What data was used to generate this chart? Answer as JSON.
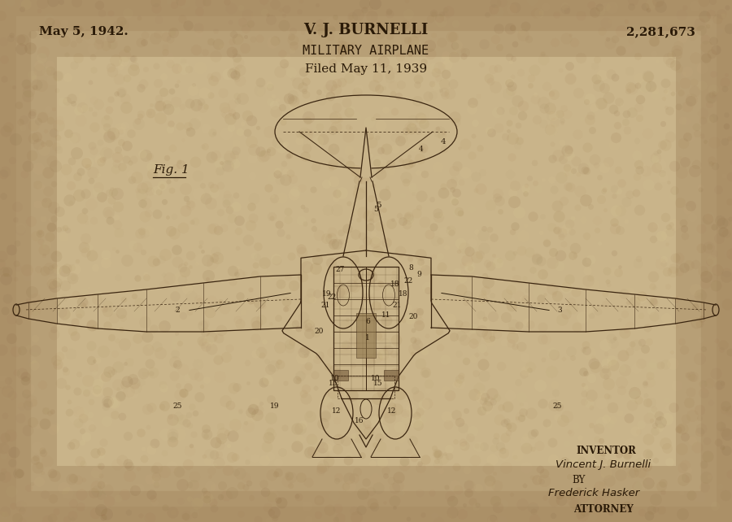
{
  "bg_color": "#c9b48a",
  "line_color": "#3a2510",
  "text_color": "#2a1a08",
  "vignette_color": "#7a5530",
  "texture_colors": [
    "#a08050",
    "#e0cf9a",
    "#8a6840",
    "#b09060"
  ],
  "num_texture": 3000,
  "title_left": "May 5, 1942.",
  "title_center": "V. J. BURNELLI",
  "title_right": "2,281,673",
  "subtitle1": "MILITARY AIRPLANE",
  "subtitle2": "Filed May 11, 1939",
  "fig_label": "Fig. 1",
  "inventor_label": "INVENTOR",
  "inventor_sig": "Vincent J. Burnelli",
  "by_label": "BY",
  "attorney_sig": "Frederick Hasker",
  "attorney_label": "ATTORNEY"
}
